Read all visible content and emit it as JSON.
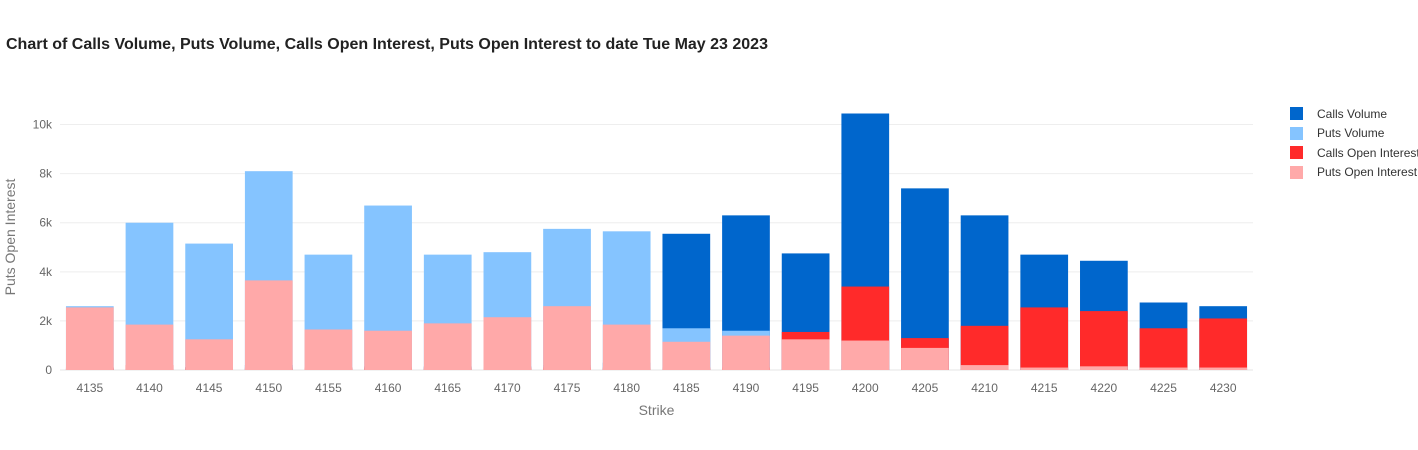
{
  "chart_data": {
    "type": "bar",
    "title": "Chart of Calls Volume, Puts Volume, Calls Open Interest, Puts Open Interest to date Tue May 23 2023",
    "xlabel": "Strike",
    "ylabel": "Puts Open Interest",
    "categories": [
      "4135",
      "4140",
      "4145",
      "4150",
      "4155",
      "4160",
      "4165",
      "4170",
      "4175",
      "4180",
      "4185",
      "4190",
      "4195",
      "4200",
      "4205",
      "4210",
      "4215",
      "4220",
      "4225",
      "4230"
    ],
    "ylim": [
      0,
      11000
    ],
    "yticks": [
      0,
      2000,
      4000,
      6000,
      8000,
      10000
    ],
    "ytick_labels": [
      "0",
      "2k",
      "4k",
      "6k",
      "8k",
      "10k"
    ],
    "grid": true,
    "barmode": "overlay",
    "legend_position": "right",
    "series": [
      {
        "name": "Calls Volume",
        "color": "#0066cc",
        "values": [
          50,
          100,
          120,
          200,
          100,
          150,
          150,
          150,
          200,
          300,
          5550,
          6300,
          4750,
          10450,
          7400,
          6300,
          4700,
          4450,
          2750,
          2600
        ]
      },
      {
        "name": "Puts Volume",
        "color": "#85c4ff",
        "values": [
          2600,
          6000,
          5150,
          8100,
          4700,
          6700,
          4700,
          4800,
          5750,
          5650,
          1700,
          1600,
          800,
          200,
          600,
          300,
          100,
          100,
          50,
          50
        ]
      },
      {
        "name": "Calls Open Interest",
        "color": "#ff2a2a",
        "values": [
          100,
          200,
          100,
          100,
          100,
          100,
          100,
          100,
          100,
          100,
          100,
          100,
          1550,
          3400,
          1300,
          1800,
          2550,
          2400,
          1700,
          2100
        ]
      },
      {
        "name": "Puts Open Interest",
        "color": "#ffa9a9",
        "values": [
          2550,
          1850,
          1250,
          3650,
          1650,
          1600,
          1900,
          2150,
          2600,
          1850,
          1150,
          1400,
          1250,
          1200,
          900,
          200,
          100,
          150,
          100,
          100
        ]
      }
    ]
  }
}
